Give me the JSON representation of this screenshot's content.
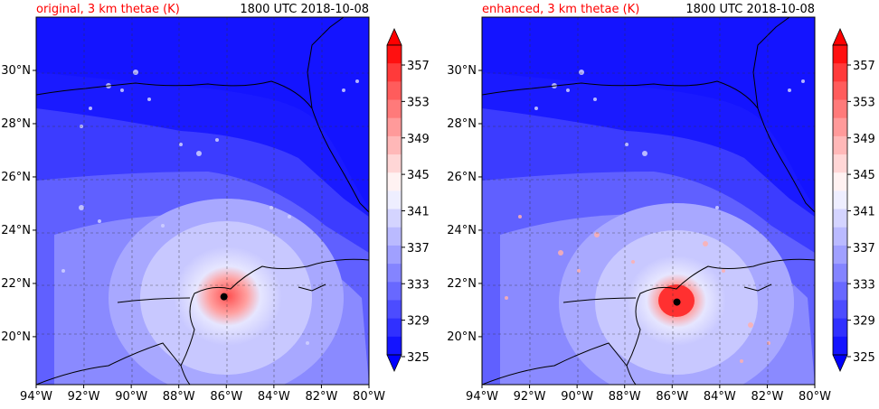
{
  "panels": [
    {
      "id": "original",
      "title_left": "original, 3 km thetae (K)",
      "title_right": "1800 UTC 2018-10-08",
      "storm": {
        "lon": -86.1,
        "lat": 21.5
      }
    },
    {
      "id": "enhanced",
      "title_left": "enhanced, 3 km thetae (K)",
      "title_right": "1800 UTC 2018-10-08",
      "storm": {
        "lon": -85.8,
        "lat": 21.3
      }
    }
  ],
  "x_ticks": [
    "94°W",
    "92°W",
    "90°W",
    "88°W",
    "86°W",
    "84°W",
    "82°W",
    "80°W"
  ],
  "y_ticks": [
    "30°N",
    "28°N",
    "26°N",
    "24°N",
    "22°N",
    "20°N"
  ],
  "colorbar": {
    "labels": [
      "357",
      "353",
      "349",
      "345",
      "341",
      "337",
      "333",
      "329",
      "325"
    ],
    "colors": [
      "#ff1010",
      "#ff3a3a",
      "#ff5c5c",
      "#ff7a7a",
      "#ff9a9a",
      "#ffb8b8",
      "#ffd6d6",
      "#fff2f2",
      "#eeeeff",
      "#d4d4ff",
      "#babaff",
      "#a0a0ff",
      "#8484ff",
      "#6868ff",
      "#4c4cff",
      "#3030ff",
      "#1414ff"
    ],
    "over_color": "#ff0000",
    "under_color": "#0000ff"
  },
  "colors": {
    "title_left": "#ff0000",
    "land": "#1a1aff",
    "gulf": "#4a4aff",
    "ring_outer": "#9a9aff",
    "ring_mid": "#dadaff",
    "core": "#ff8888",
    "storm_center": "#000000"
  }
}
